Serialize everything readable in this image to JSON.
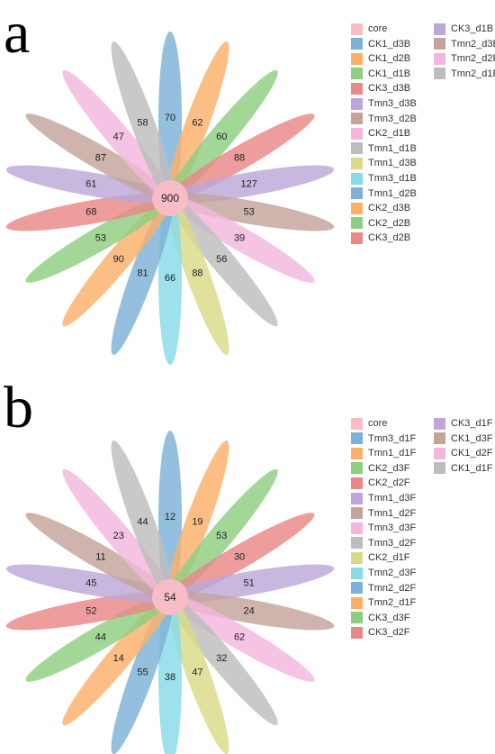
{
  "colors": {
    "core": "#f7bcc5",
    "palette": [
      "#7eb1d8",
      "#fbb06a",
      "#8dce81",
      "#ea8787",
      "#bca7d8",
      "#c3a49b",
      "#f3b6dd",
      "#bdbdbd",
      "#d9da87",
      "#86dbe6"
    ]
  },
  "panel_a": {
    "letter": "a",
    "core_label": "core",
    "core_value": "900",
    "petals": [
      {
        "name": "CK1_d3B",
        "value": "70",
        "color": "#7eb1d8"
      },
      {
        "name": "CK1_d2B",
        "value": "62",
        "color": "#fbb06a"
      },
      {
        "name": "CK1_d1B",
        "value": "60",
        "color": "#8dce81"
      },
      {
        "name": "CK3_d3B",
        "value": "88",
        "color": "#ea8787"
      },
      {
        "name": "Tmn3_d3B",
        "value": "127",
        "color": "#bca7d8"
      },
      {
        "name": "Tmn3_d2B",
        "value": "53",
        "color": "#c3a49b"
      },
      {
        "name": "CK2_d1B",
        "value": "39",
        "color": "#f3b6dd"
      },
      {
        "name": "Tmn1_d1B",
        "value": "56",
        "color": "#bdbdbd"
      },
      {
        "name": "Tmn1_d3B",
        "value": "88",
        "color": "#d9da87"
      },
      {
        "name": "Tmn3_d1B",
        "value": "66",
        "color": "#86dbe6"
      },
      {
        "name": "Tmn1_d2B",
        "value": "81",
        "color": "#7eb1d8"
      },
      {
        "name": "CK2_d3B",
        "value": "90",
        "color": "#fbb06a"
      },
      {
        "name": "CK2_d2B",
        "value": "53",
        "color": "#8dce81"
      },
      {
        "name": "CK3_d2B",
        "value": "68",
        "color": "#ea8787"
      },
      {
        "name": "CK3_d1B",
        "value": "61",
        "color": "#bca7d8"
      },
      {
        "name": "Tmn2_d3B",
        "value": "87",
        "color": "#c3a49b"
      },
      {
        "name": "Tmn2_d2B",
        "value": "47",
        "color": "#f3b6dd"
      },
      {
        "name": "Tmn2_d1B",
        "value": "58",
        "color": "#bdbdbd"
      }
    ]
  },
  "panel_b": {
    "letter": "b",
    "core_label": "core",
    "core_value": "54",
    "petals": [
      {
        "name": "Tmn3_d1F",
        "value": "12",
        "color": "#7eb1d8"
      },
      {
        "name": "Tmn1_d1F",
        "value": "19",
        "color": "#fbb06a"
      },
      {
        "name": "CK2_d3F",
        "value": "53",
        "color": "#8dce81"
      },
      {
        "name": "CK2_d2F",
        "value": "30",
        "color": "#ea8787"
      },
      {
        "name": "Tmn1_d3F",
        "value": "51",
        "color": "#bca7d8"
      },
      {
        "name": "Tmn1_d2F",
        "value": "24",
        "color": "#c3a49b"
      },
      {
        "name": "Tmn3_d3F",
        "value": "62",
        "color": "#f3b6dd"
      },
      {
        "name": "Tmn3_d2F",
        "value": "32",
        "color": "#bdbdbd"
      },
      {
        "name": "CK2_d1F",
        "value": "47",
        "color": "#d9da87"
      },
      {
        "name": "Tmn2_d3F",
        "value": "38",
        "color": "#86dbe6"
      },
      {
        "name": "Tmn2_d2F",
        "value": "55",
        "color": "#7eb1d8"
      },
      {
        "name": "Tmn2_d1F",
        "value": "14",
        "color": "#fbb06a"
      },
      {
        "name": "CK3_d3F",
        "value": "44",
        "color": "#8dce81"
      },
      {
        "name": "CK3_d2F",
        "value": "52",
        "color": "#ea8787"
      },
      {
        "name": "CK3_d1F",
        "value": "45",
        "color": "#bca7d8"
      },
      {
        "name": "CK1_d3F",
        "value": "11",
        "color": "#c3a49b"
      },
      {
        "name": "CK1_d2F",
        "value": "23",
        "color": "#f3b6dd"
      },
      {
        "name": "CK1_d1F",
        "value": "44",
        "color": "#bdbdbd"
      }
    ]
  }
}
